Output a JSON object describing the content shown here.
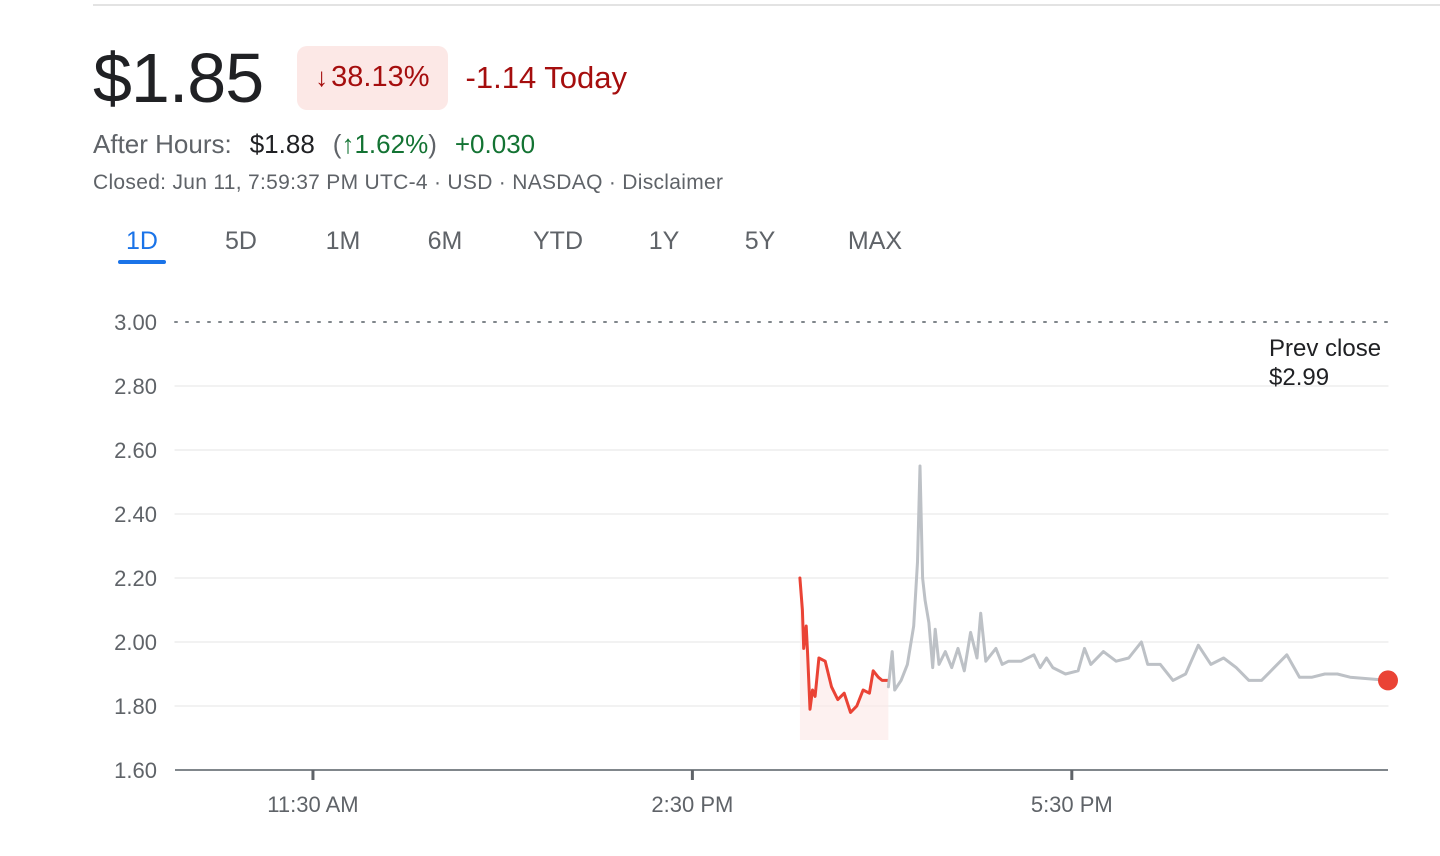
{
  "quote": {
    "price": "$1.85",
    "change_pct": "38.13%",
    "change_direction": "down",
    "change_today": "-1.14 Today",
    "colors": {
      "negative": "#a50e0e",
      "negative_bg": "#fce8e6",
      "positive": "#137333",
      "link": "#1a73e8"
    }
  },
  "after_hours": {
    "label": "After Hours:",
    "price": "$1.88",
    "open_paren": "(",
    "pct": "1.62%",
    "close_paren": ")",
    "change": "+0.030"
  },
  "meta": "Closed: Jun 11, 7:59:37 PM UTC-4 · USD · NASDAQ · Disclaimer",
  "tabs": [
    {
      "label": "1D",
      "active": true
    },
    {
      "label": "5D",
      "active": false
    },
    {
      "label": "1M",
      "active": false
    },
    {
      "label": "6M",
      "active": false
    },
    {
      "label": "YTD",
      "active": false
    },
    {
      "label": "1Y",
      "active": false
    },
    {
      "label": "5Y",
      "active": false
    },
    {
      "label": "MAX",
      "active": false
    }
  ],
  "chart_data": {
    "type": "line",
    "ylim": [
      1.6,
      3.0
    ],
    "y_ticks": [
      "3.00",
      "2.80",
      "2.60",
      "2.40",
      "2.20",
      "2.00",
      "1.80",
      "1.60"
    ],
    "x_range_hours": [
      9.5,
      20.0
    ],
    "x_tick_labels": [
      {
        "label": "11:30 AM",
        "hour": 11.5
      },
      {
        "label": "2:30 PM",
        "hour": 14.5
      },
      {
        "label": "5:30 PM",
        "hour": 17.5
      }
    ],
    "grid": true,
    "prev_close": {
      "label": "Prev close",
      "value_label": "$2.99",
      "value": 2.99
    },
    "series": [
      {
        "session": "regular",
        "color": "#ea4335",
        "points": [
          [
            15.35,
            2.2
          ],
          [
            15.37,
            2.1
          ],
          [
            15.38,
            1.98
          ],
          [
            15.4,
            2.05
          ],
          [
            15.41,
            1.97
          ],
          [
            15.43,
            1.79
          ],
          [
            15.45,
            1.85
          ],
          [
            15.47,
            1.83
          ],
          [
            15.5,
            1.95
          ],
          [
            15.55,
            1.94
          ],
          [
            15.6,
            1.86
          ],
          [
            15.65,
            1.82
          ],
          [
            15.7,
            1.84
          ],
          [
            15.75,
            1.78
          ],
          [
            15.8,
            1.8
          ],
          [
            15.85,
            1.85
          ],
          [
            15.9,
            1.84
          ],
          [
            15.93,
            1.91
          ],
          [
            15.97,
            1.89
          ],
          [
            16.0,
            1.88
          ],
          [
            16.05,
            1.88
          ]
        ]
      },
      {
        "session": "after_hours",
        "color": "#bdc1c6",
        "points": [
          [
            16.05,
            1.86
          ],
          [
            16.08,
            1.97
          ],
          [
            16.1,
            1.85
          ],
          [
            16.15,
            1.88
          ],
          [
            16.2,
            1.93
          ],
          [
            16.25,
            2.05
          ],
          [
            16.28,
            2.25
          ],
          [
            16.3,
            2.55
          ],
          [
            16.32,
            2.2
          ],
          [
            16.34,
            2.13
          ],
          [
            16.37,
            2.06
          ],
          [
            16.4,
            1.92
          ],
          [
            16.42,
            2.04
          ],
          [
            16.45,
            1.93
          ],
          [
            16.5,
            1.97
          ],
          [
            16.55,
            1.92
          ],
          [
            16.6,
            1.98
          ],
          [
            16.65,
            1.91
          ],
          [
            16.7,
            2.03
          ],
          [
            16.75,
            1.95
          ],
          [
            16.78,
            2.09
          ],
          [
            16.82,
            1.94
          ],
          [
            16.9,
            1.98
          ],
          [
            16.95,
            1.93
          ],
          [
            17.0,
            1.94
          ],
          [
            17.1,
            1.94
          ],
          [
            17.2,
            1.96
          ],
          [
            17.25,
            1.92
          ],
          [
            17.3,
            1.95
          ],
          [
            17.35,
            1.92
          ],
          [
            17.45,
            1.9
          ],
          [
            17.55,
            1.91
          ],
          [
            17.6,
            1.98
          ],
          [
            17.65,
            1.93
          ],
          [
            17.75,
            1.97
          ],
          [
            17.85,
            1.94
          ],
          [
            17.95,
            1.95
          ],
          [
            18.05,
            2.0
          ],
          [
            18.1,
            1.93
          ],
          [
            18.2,
            1.93
          ],
          [
            18.3,
            1.88
          ],
          [
            18.4,
            1.9
          ],
          [
            18.5,
            1.99
          ],
          [
            18.6,
            1.93
          ],
          [
            18.7,
            1.95
          ],
          [
            18.8,
            1.92
          ],
          [
            18.9,
            1.88
          ],
          [
            19.0,
            1.88
          ],
          [
            19.1,
            1.92
          ],
          [
            19.2,
            1.96
          ],
          [
            19.3,
            1.89
          ],
          [
            19.4,
            1.89
          ],
          [
            19.5,
            1.9
          ],
          [
            19.6,
            1.9
          ],
          [
            19.7,
            1.89
          ],
          [
            20.0,
            1.88
          ]
        ]
      }
    ],
    "last_point": {
      "hour": 20.0,
      "value": 1.88,
      "color": "#ea4335"
    }
  }
}
